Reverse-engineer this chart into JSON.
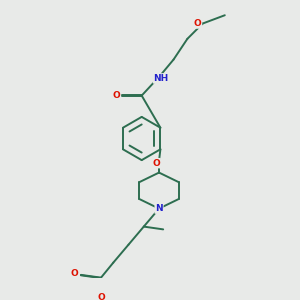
{
  "background_color": "#e8eae8",
  "bond_color": "#2d6e50",
  "atom_colors": {
    "O": "#dd1100",
    "N": "#2222cc",
    "C": "#2d6e50"
  },
  "figsize": [
    3.0,
    3.0
  ],
  "dpi": 100
}
